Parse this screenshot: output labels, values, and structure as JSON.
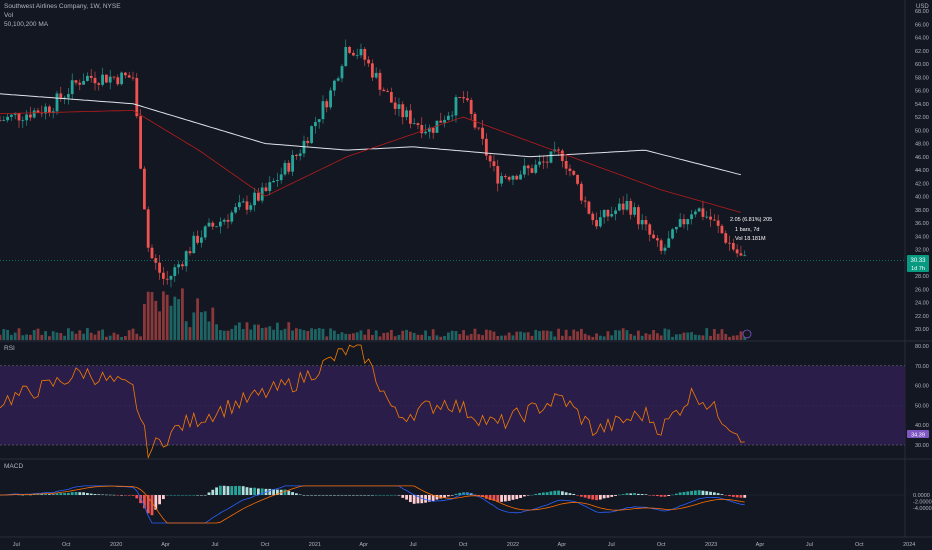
{
  "header": {
    "symbol_line": "Southwest Airlines Company, 1W, NYSE",
    "vol_label": "Vol",
    "ma_label": "50,100,200 MA",
    "currency": "USD"
  },
  "price_scale": {
    "ticks": [
      "68.00",
      "66.00",
      "64.00",
      "62.00",
      "60.00",
      "58.00",
      "56.00",
      "54.00",
      "52.00",
      "50.00",
      "48.00",
      "46.00",
      "44.00",
      "42.00",
      "40.00",
      "38.00",
      "36.00",
      "34.00",
      "32.00",
      "30.00",
      "28.00",
      "26.00",
      "24.00",
      "22.00",
      "20.00"
    ],
    "last_price_label": "30.33",
    "countdown_label": "1d 7h"
  },
  "measure_tooltip": {
    "line1": "2.05 (6.81%) 205",
    "line2": "1 bars, 7d",
    "line3": "Vol 18.181M"
  },
  "rsi": {
    "label": "RSI",
    "ticks": [
      "80.00",
      "70.00",
      "60.00",
      "50.00",
      "40.00",
      "30.00"
    ],
    "value_label": "34.39"
  },
  "macd": {
    "label": "MACD",
    "ticks": [
      "0.0000",
      "-2.0000",
      "-4.0000"
    ]
  },
  "time_axis": {
    "labels": [
      "Jul",
      "Oct",
      "2020",
      "Apr",
      "Jul",
      "Oct",
      "2021",
      "Apr",
      "Jul",
      "Oct",
      "2022",
      "Apr",
      "Jul",
      "Oct",
      "2023",
      "Apr",
      "Jul",
      "Oct",
      "2024"
    ]
  },
  "colors": {
    "background": "#131722",
    "up": "#26a69a",
    "down": "#ef5350",
    "ma200": "#e0e3eb",
    "ma100": "#b71c1c",
    "rsi_line": "#f57c00",
    "rsi_band": "#2a1d4a",
    "macd_line": "#2962ff",
    "signal_line": "#ff6d00",
    "last_price": "#089981"
  },
  "chart_data": {
    "type": "candlestick",
    "title": "Southwest Airlines Company, 1W, NYSE",
    "ylim": [
      20,
      68
    ],
    "price_path_anchors": [
      {
        "date": "2019-06",
        "close": 51.5
      },
      {
        "date": "2019-09",
        "close": 53.5
      },
      {
        "date": "2019-11",
        "close": 58.0
      },
      {
        "date": "2020-02",
        "close": 58.0
      },
      {
        "date": "2020-03",
        "close": 31.5
      },
      {
        "date": "2020-04",
        "close": 27.0
      },
      {
        "date": "2020-06",
        "close": 34.0
      },
      {
        "date": "2020-08",
        "close": 37.5
      },
      {
        "date": "2020-10",
        "close": 40.5
      },
      {
        "date": "2020-12",
        "close": 46.5
      },
      {
        "date": "2021-02",
        "close": 56.0
      },
      {
        "date": "2021-03",
        "close": 63.0
      },
      {
        "date": "2021-04",
        "close": 61.0
      },
      {
        "date": "2021-06",
        "close": 53.0
      },
      {
        "date": "2021-08",
        "close": 50.0
      },
      {
        "date": "2021-10",
        "close": 55.0
      },
      {
        "date": "2021-12",
        "close": 43.0
      },
      {
        "date": "2022-02",
        "close": 44.0
      },
      {
        "date": "2022-04",
        "close": 46.5
      },
      {
        "date": "2022-06",
        "close": 36.0
      },
      {
        "date": "2022-08",
        "close": 39.0
      },
      {
        "date": "2022-10",
        "close": 31.5
      },
      {
        "date": "2022-12",
        "close": 38.5
      },
      {
        "date": "2023-01",
        "close": 36.5
      },
      {
        "date": "2023-03",
        "close": 30.33
      }
    ],
    "ma_200_anchors": [
      {
        "date": "2019-06",
        "value": 55.5
      },
      {
        "date": "2020-02",
        "value": 54.0
      },
      {
        "date": "2020-10",
        "value": 48.0
      },
      {
        "date": "2021-03",
        "value": 47.0
      },
      {
        "date": "2021-07",
        "value": 47.5
      },
      {
        "date": "2022-02",
        "value": 46.0
      },
      {
        "date": "2022-09",
        "value": 47.0
      },
      {
        "date": "2023-03",
        "value": 43.2
      }
    ],
    "ma_100_anchors": [
      {
        "date": "2019-06",
        "value": 52.5
      },
      {
        "date": "2020-02",
        "value": 53.0
      },
      {
        "date": "2020-06",
        "value": 47.0
      },
      {
        "date": "2020-10",
        "value": 40.0
      },
      {
        "date": "2021-03",
        "value": 46.0
      },
      {
        "date": "2021-10",
        "value": 52.0
      },
      {
        "date": "2022-04",
        "value": 46.5
      },
      {
        "date": "2022-10",
        "value": 41.0
      },
      {
        "date": "2023-03",
        "value": 37.5
      }
    ],
    "rsi_anchors": [
      {
        "date": "2019-06",
        "value": 52
      },
      {
        "date": "2019-09",
        "value": 60
      },
      {
        "date": "2019-11",
        "value": 67
      },
      {
        "date": "2020-02",
        "value": 58
      },
      {
        "date": "2020-03",
        "value": 27
      },
      {
        "date": "2020-05",
        "value": 40
      },
      {
        "date": "2020-08",
        "value": 50
      },
      {
        "date": "2020-12",
        "value": 62
      },
      {
        "date": "2021-03",
        "value": 78
      },
      {
        "date": "2021-04",
        "value": 76
      },
      {
        "date": "2021-06",
        "value": 44
      },
      {
        "date": "2021-09",
        "value": 52
      },
      {
        "date": "2021-12",
        "value": 40
      },
      {
        "date": "2022-04",
        "value": 54
      },
      {
        "date": "2022-06",
        "value": 37
      },
      {
        "date": "2022-09",
        "value": 46
      },
      {
        "date": "2022-10",
        "value": 38
      },
      {
        "date": "2022-12",
        "value": 57
      },
      {
        "date": "2023-03",
        "value": 34.39
      }
    ],
    "rsi_band": [
      30,
      70
    ],
    "macd_ylim": [
      -4.5,
      1.5
    ]
  }
}
